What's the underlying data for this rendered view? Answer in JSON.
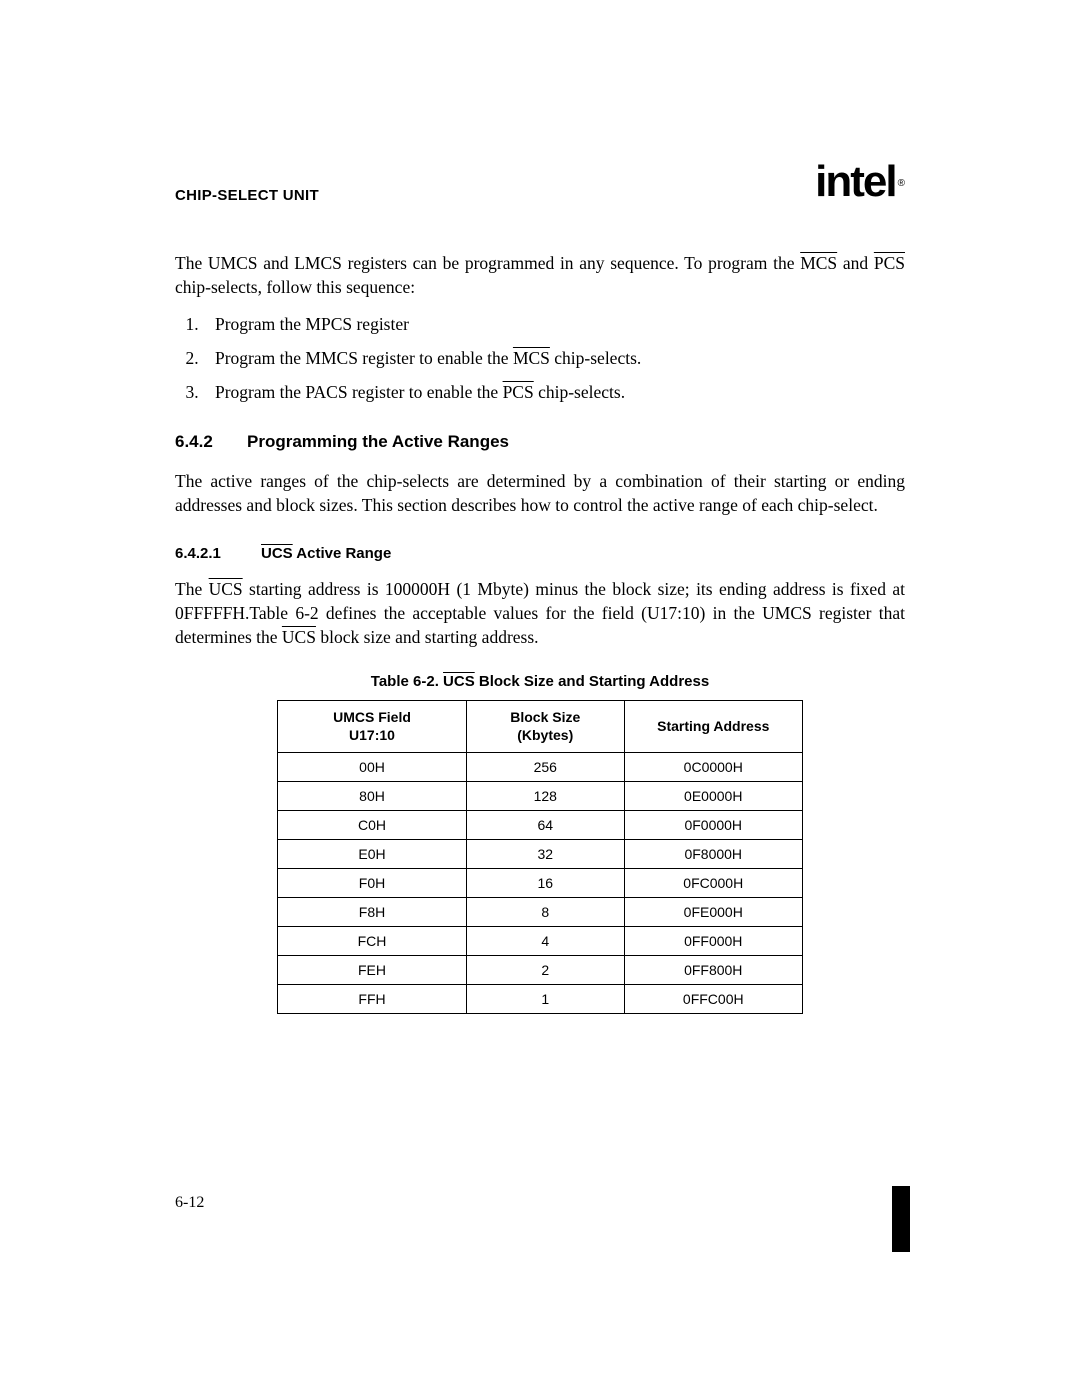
{
  "header": {
    "title": "CHIP-SELECT UNIT",
    "logo": "intel",
    "logo_sub": "®"
  },
  "intro": {
    "pre": "The UMCS and LMCS registers can be programmed in any sequence. To program the ",
    "ov1": "MCS",
    "mid": " and ",
    "ov2": "PCS",
    "post": " chip-selects, follow this sequence:"
  },
  "steps": {
    "s1": "Program the MPCS register",
    "s2_pre": "Program the MMCS register to enable the ",
    "s2_ov": "MCS",
    "s2_post": " chip-selects.",
    "s3_pre": "Program the PACS register to enable the ",
    "s3_ov": "PCS",
    "s3_post": " chip-selects."
  },
  "section": {
    "num": "6.4.2",
    "title": "Programming the Active Ranges",
    "body": "The active ranges of the chip-selects are determined by a combination of their starting or ending addresses and block sizes. This section describes how to control the active range of each chip-select."
  },
  "subsection": {
    "num": "6.4.2.1",
    "title_ov": "UCS",
    "title_post": " Active Range",
    "body_pre": "The ",
    "body_ov1": "UCS",
    "body_mid1": " starting address is 100000H (1 Mbyte) minus the block size; its ending address is fixed at 0FFFFFH.Table 6-2 defines the acceptable values for the field (U17:10) in the UMCS register that determines the ",
    "body_ov2": "UCS",
    "body_post": " block size and starting address."
  },
  "table": {
    "caption_pre": "Table 6-2.  ",
    "caption_ov": "UCS",
    "caption_post": " Block Size and Starting Address",
    "headers": {
      "h0a": "UMCS Field",
      "h0b": "U17:10",
      "h1a": "Block Size",
      "h1b": "(Kbytes)",
      "h2": "Starting Address"
    },
    "rows": [
      {
        "c0": "00H",
        "c1": "256",
        "c2": "0C0000H"
      },
      {
        "c0": "80H",
        "c1": "128",
        "c2": "0E0000H"
      },
      {
        "c0": "C0H",
        "c1": "64",
        "c2": "0F0000H"
      },
      {
        "c0": "E0H",
        "c1": "32",
        "c2": "0F8000H"
      },
      {
        "c0": "F0H",
        "c1": "16",
        "c2": "0FC000H"
      },
      {
        "c0": "F8H",
        "c1": "8",
        "c2": "0FE000H"
      },
      {
        "c0": "FCH",
        "c1": "4",
        "c2": "0FF000H"
      },
      {
        "c0": "FEH",
        "c1": "2",
        "c2": "0FF800H"
      },
      {
        "c0": "FFH",
        "c1": "1",
        "c2": "0FFC00H"
      }
    ]
  },
  "footer": {
    "page": "6-12"
  }
}
